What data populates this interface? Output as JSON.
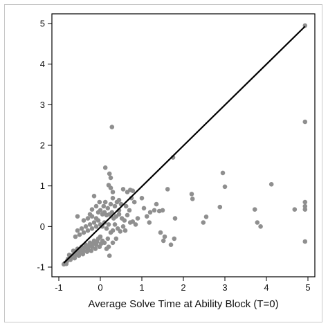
{
  "chart_data": {
    "type": "scatter",
    "xlabel": "Average Solve Time at Ability Block (T=0)",
    "ylabel": "",
    "xlim": [
      -1,
      5
    ],
    "ylim": [
      -1,
      5
    ],
    "x_ticks": [
      "-1",
      "0",
      "1",
      "2",
      "3",
      "4",
      "5"
    ],
    "y_ticks": [
      "-1",
      "0",
      "1",
      "2",
      "3",
      "4",
      "5"
    ],
    "grid": false,
    "legend": "none",
    "colors": {
      "points": "#8f8f8f",
      "line": "#000000",
      "axis": "#000000"
    },
    "reference_line": {
      "x1": -0.88,
      "y1": -0.9,
      "x2": 4.93,
      "y2": 4.93
    },
    "series": [
      {
        "points": [
          [
            4.93,
            4.95
          ],
          [
            4.93,
            2.58
          ],
          [
            4.93,
            0.6
          ],
          [
            4.93,
            0.5
          ],
          [
            4.93,
            0.42
          ],
          [
            4.93,
            -0.37
          ],
          [
            4.68,
            0.42
          ],
          [
            4.12,
            1.04
          ],
          [
            3.72,
            0.42
          ],
          [
            3.78,
            0.1
          ],
          [
            3.86,
            0.0
          ],
          [
            2.95,
            1.32
          ],
          [
            3.0,
            0.98
          ],
          [
            2.88,
            0.48
          ],
          [
            2.2,
            0.8
          ],
          [
            2.22,
            0.68
          ],
          [
            2.55,
            0.24
          ],
          [
            2.48,
            0.1
          ],
          [
            1.62,
            0.92
          ],
          [
            1.75,
            1.7
          ],
          [
            1.8,
            0.2
          ],
          [
            1.78,
            -0.3
          ],
          [
            1.7,
            -0.45
          ],
          [
            1.35,
            0.55
          ],
          [
            1.3,
            0.4
          ],
          [
            1.42,
            0.38
          ],
          [
            1.5,
            0.4
          ],
          [
            1.45,
            -0.15
          ],
          [
            1.55,
            -0.25
          ],
          [
            1.52,
            -0.35
          ],
          [
            1.0,
            0.7
          ],
          [
            1.05,
            0.45
          ],
          [
            1.12,
            0.25
          ],
          [
            1.2,
            0.35
          ],
          [
            1.18,
            0.1
          ],
          [
            0.28,
            2.45
          ],
          [
            0.12,
            1.45
          ],
          [
            0.22,
            1.3
          ],
          [
            0.25,
            1.2
          ],
          [
            0.2,
            1.02
          ],
          [
            0.25,
            0.95
          ],
          [
            0.3,
            0.85
          ],
          [
            0.55,
            0.92
          ],
          [
            0.65,
            0.85
          ],
          [
            0.72,
            0.9
          ],
          [
            0.78,
            0.88
          ],
          [
            0.75,
            0.7
          ],
          [
            0.82,
            0.6
          ],
          [
            0.62,
            0.5
          ],
          [
            0.5,
            0.55
          ],
          [
            0.45,
            0.65
          ],
          [
            0.4,
            0.6
          ],
          [
            0.35,
            0.5
          ],
          [
            -0.15,
            0.75
          ],
          [
            -0.1,
            0.5
          ],
          [
            -0.2,
            0.42
          ],
          [
            -0.55,
            0.25
          ],
          [
            0.05,
            0.3
          ],
          [
            0.1,
            0.35
          ],
          [
            0.15,
            0.28
          ],
          [
            0.22,
            0.3
          ],
          [
            0.28,
            0.35
          ],
          [
            0.32,
            0.2
          ],
          [
            0.38,
            0.25
          ],
          [
            0.45,
            0.3
          ],
          [
            0.52,
            0.2
          ],
          [
            0.58,
            0.15
          ],
          [
            0.65,
            0.28
          ],
          [
            0.72,
            0.1
          ],
          [
            0.78,
            0.12
          ],
          [
            0.85,
            0.05
          ],
          [
            0.9,
            0.2
          ],
          [
            0.55,
            0.0
          ],
          [
            0.6,
            -0.1
          ],
          [
            0.48,
            -0.12
          ],
          [
            0.42,
            -0.05
          ],
          [
            0.35,
            0.05
          ],
          [
            0.3,
            -0.1
          ],
          [
            0.25,
            -0.15
          ],
          [
            0.2,
            0.05
          ],
          [
            0.15,
            -0.05
          ],
          [
            0.1,
            0.1
          ],
          [
            0.05,
            0.0
          ],
          [
            0.0,
            0.05
          ],
          [
            -0.05,
            0.15
          ],
          [
            -0.1,
            0.0
          ],
          [
            -0.15,
            0.1
          ],
          [
            -0.2,
            -0.05
          ],
          [
            -0.25,
            0.05
          ],
          [
            -0.3,
            -0.1
          ],
          [
            -0.35,
            0.0
          ],
          [
            -0.4,
            -0.15
          ],
          [
            -0.45,
            -0.05
          ],
          [
            -0.5,
            -0.2
          ],
          [
            -0.55,
            -0.1
          ],
          [
            -0.6,
            -0.25
          ],
          [
            0.18,
            -0.3
          ],
          [
            0.1,
            -0.4
          ],
          [
            0.05,
            -0.35
          ],
          [
            0.0,
            -0.25
          ],
          [
            -0.05,
            -0.3
          ],
          [
            0.2,
            -0.5
          ],
          [
            0.15,
            -0.55
          ],
          [
            0.22,
            -0.72
          ],
          [
            0.3,
            -0.4
          ],
          [
            0.38,
            -0.3
          ],
          [
            -0.1,
            -0.45
          ],
          [
            -0.15,
            -0.35
          ],
          [
            -0.2,
            -0.5
          ],
          [
            -0.25,
            -0.4
          ],
          [
            -0.3,
            -0.55
          ],
          [
            -0.35,
            -0.45
          ],
          [
            -0.4,
            -0.6
          ],
          [
            -0.45,
            -0.5
          ],
          [
            -0.5,
            -0.65
          ],
          [
            -0.55,
            -0.55
          ],
          [
            -0.6,
            -0.7
          ],
          [
            -0.65,
            -0.6
          ],
          [
            -0.7,
            -0.75
          ],
          [
            -0.75,
            -0.7
          ],
          [
            -0.8,
            -0.85
          ],
          [
            -0.85,
            -0.9
          ],
          [
            -0.88,
            -0.93
          ],
          [
            -0.82,
            -0.92
          ],
          [
            -0.78,
            -0.8
          ],
          [
            -0.72,
            -0.82
          ],
          [
            -0.68,
            -0.72
          ],
          [
            -0.62,
            -0.78
          ],
          [
            -0.58,
            -0.62
          ],
          [
            -0.52,
            -0.72
          ],
          [
            -0.48,
            -0.58
          ],
          [
            -0.42,
            -0.68
          ],
          [
            -0.38,
            -0.52
          ],
          [
            -0.32,
            -0.62
          ],
          [
            -0.28,
            -0.48
          ],
          [
            -0.22,
            -0.6
          ],
          [
            -0.18,
            -0.42
          ],
          [
            -0.12,
            -0.55
          ],
          [
            -0.08,
            -0.38
          ],
          [
            -0.02,
            -0.5
          ],
          [
            0.02,
            -0.42
          ],
          [
            -0.4,
            0.15
          ],
          [
            -0.3,
            0.2
          ],
          [
            -0.25,
            0.3
          ],
          [
            -0.2,
            0.25
          ],
          [
            -0.1,
            0.2
          ],
          [
            0.0,
            0.4
          ],
          [
            -0.05,
            0.35
          ],
          [
            0.08,
            0.5
          ],
          [
            -0.02,
            0.6
          ],
          [
            0.12,
            0.6
          ],
          [
            0.18,
            0.45
          ],
          [
            0.25,
            0.55
          ],
          [
            0.3,
            0.7
          ],
          [
            0.45,
            0.4
          ],
          [
            0.7,
            0.4
          ]
        ]
      }
    ]
  }
}
